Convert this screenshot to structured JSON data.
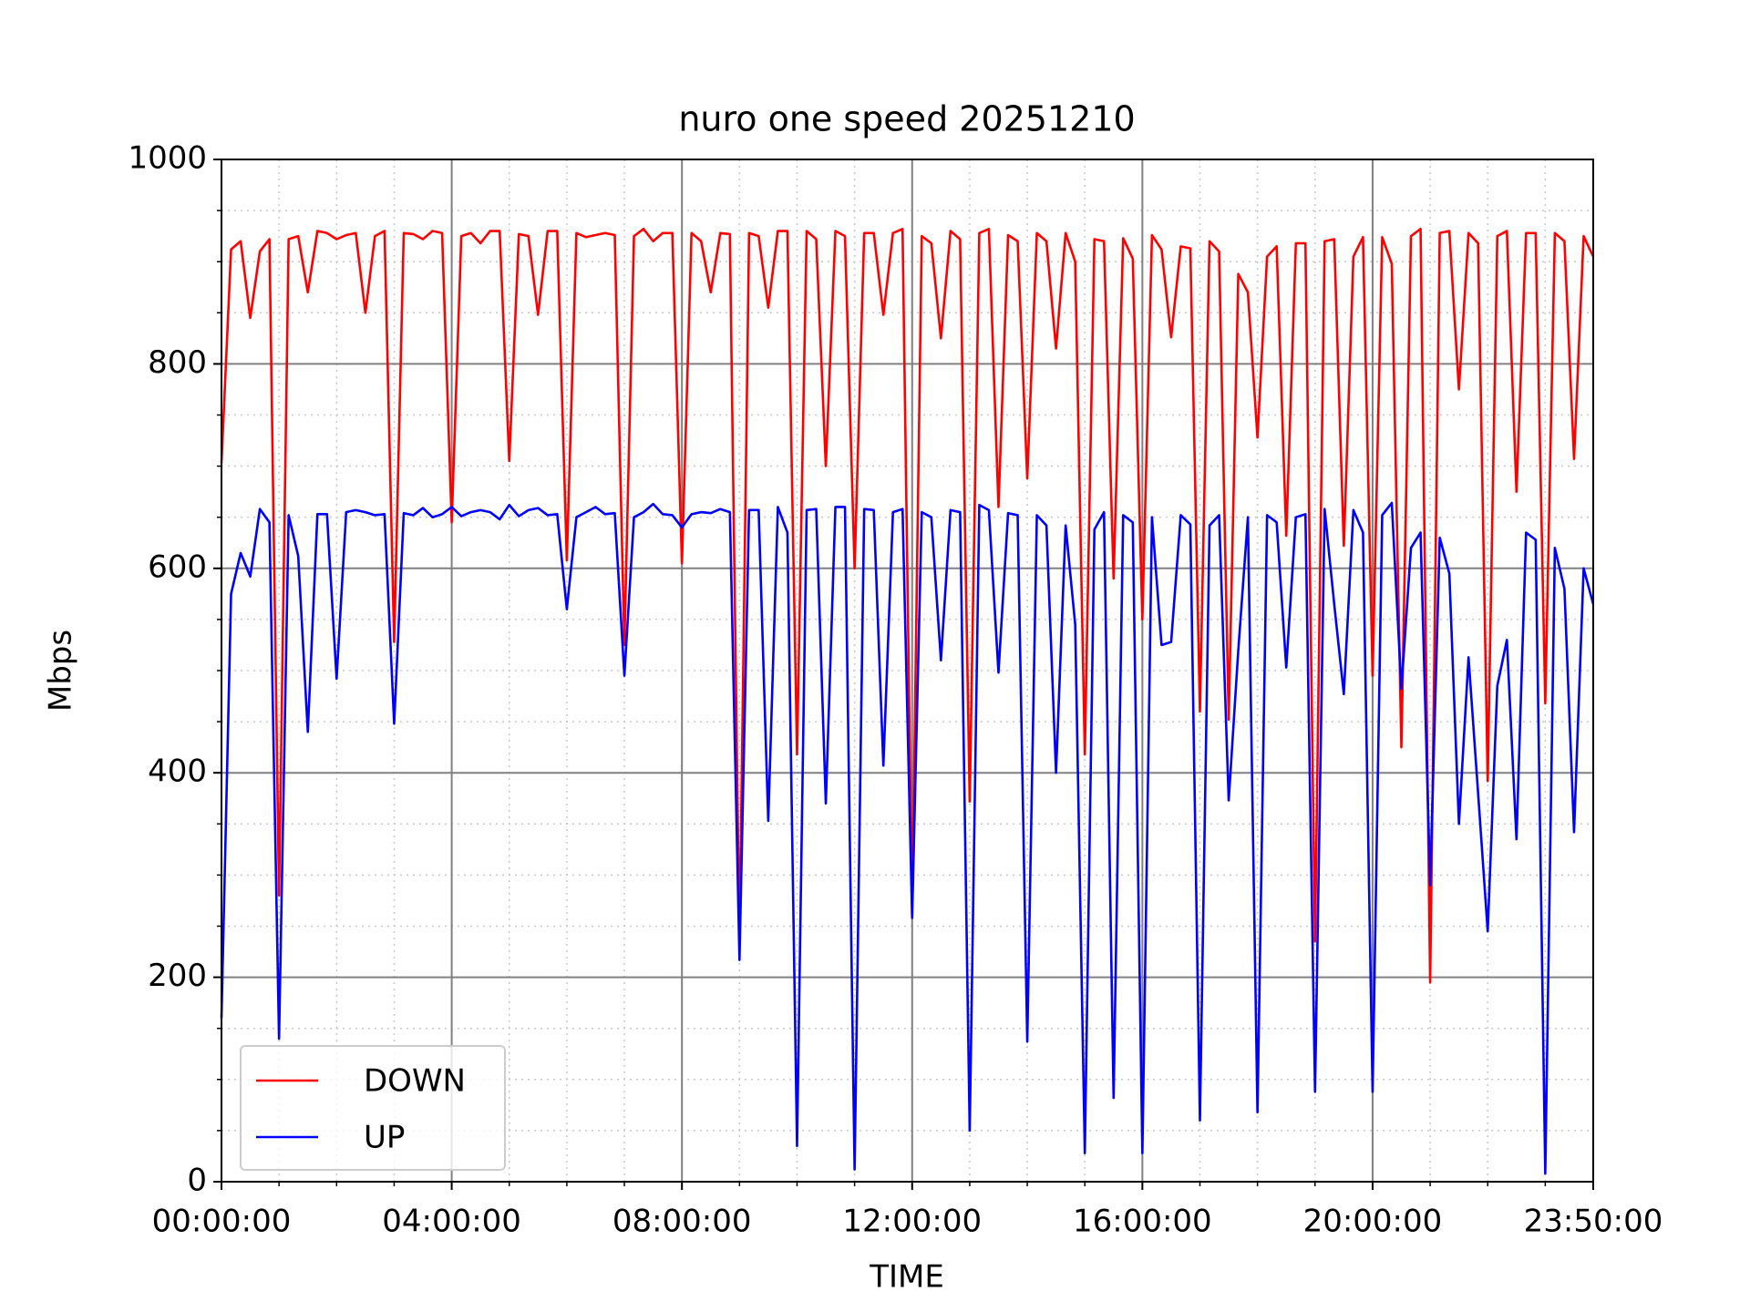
{
  "chart_data": {
    "type": "line",
    "title": "nuro one speed 20251210",
    "x_label": "TIME",
    "y_label": "Mbps",
    "x": [
      "00:00:00",
      "00:10:00",
      "00:20:00",
      "00:30:00",
      "00:40:00",
      "00:50:00",
      "01:00:00",
      "01:10:00",
      "01:20:00",
      "01:30:00",
      "01:40:00",
      "01:50:00",
      "02:00:00",
      "02:10:00",
      "02:20:00",
      "02:30:00",
      "02:40:00",
      "02:50:00",
      "03:00:00",
      "03:10:00",
      "03:20:00",
      "03:30:00",
      "03:40:00",
      "03:50:00",
      "04:00:00",
      "04:10:00",
      "04:20:00",
      "04:30:00",
      "04:40:00",
      "04:50:00",
      "05:00:00",
      "05:10:00",
      "05:20:00",
      "05:30:00",
      "05:40:00",
      "05:50:00",
      "06:00:00",
      "06:10:00",
      "06:20:00",
      "06:30:00",
      "06:40:00",
      "06:50:00",
      "07:00:00",
      "07:10:00",
      "07:20:00",
      "07:30:00",
      "07:40:00",
      "07:50:00",
      "08:00:00",
      "08:10:00",
      "08:20:00",
      "08:30:00",
      "08:40:00",
      "08:50:00",
      "09:00:00",
      "09:10:00",
      "09:20:00",
      "09:30:00",
      "09:40:00",
      "09:50:00",
      "10:00:00",
      "10:10:00",
      "10:20:00",
      "10:30:00",
      "10:40:00",
      "10:50:00",
      "11:00:00",
      "11:10:00",
      "11:20:00",
      "11:30:00",
      "11:40:00",
      "11:50:00",
      "12:00:00",
      "12:10:00",
      "12:20:00",
      "12:30:00",
      "12:40:00",
      "12:50:00",
      "13:00:00",
      "13:10:00",
      "13:20:00",
      "13:30:00",
      "13:40:00",
      "13:50:00",
      "14:00:00",
      "14:10:00",
      "14:20:00",
      "14:30:00",
      "14:40:00",
      "14:50:00",
      "15:00:00",
      "15:10:00",
      "15:20:00",
      "15:30:00",
      "15:40:00",
      "15:50:00",
      "16:00:00",
      "16:10:00",
      "16:20:00",
      "16:30:00",
      "16:40:00",
      "16:50:00",
      "17:00:00",
      "17:10:00",
      "17:20:00",
      "17:30:00",
      "17:40:00",
      "17:50:00",
      "18:00:00",
      "18:10:00",
      "18:20:00",
      "18:30:00",
      "18:40:00",
      "18:50:00",
      "19:00:00",
      "19:10:00",
      "19:20:00",
      "19:30:00",
      "19:40:00",
      "19:50:00",
      "20:00:00",
      "20:10:00",
      "20:20:00",
      "20:30:00",
      "20:40:00",
      "20:50:00",
      "21:00:00",
      "21:10:00",
      "21:20:00",
      "21:30:00",
      "21:40:00",
      "21:50:00",
      "22:00:00",
      "22:10:00",
      "22:20:00",
      "22:30:00",
      "22:40:00",
      "22:50:00",
      "23:00:00",
      "23:10:00",
      "23:20:00",
      "23:30:00",
      "23:40:00",
      "23:50:00"
    ],
    "series": [
      {
        "name": "DOWN",
        "color": "#ff0000",
        "values": [
          703,
          912,
          920,
          845,
          910,
          922,
          280,
          922,
          925,
          870,
          930,
          928,
          922,
          926,
          928,
          850,
          925,
          930,
          528,
          928,
          927,
          922,
          930,
          928,
          645,
          925,
          928,
          918,
          930,
          930,
          705,
          927,
          925,
          848,
          930,
          930,
          608,
          928,
          924,
          926,
          928,
          926,
          525,
          925,
          932,
          920,
          928,
          928,
          605,
          928,
          920,
          870,
          928,
          927,
          230,
          928,
          925,
          855,
          930,
          930,
          418,
          930,
          922,
          700,
          930,
          925,
          600,
          928,
          928,
          848,
          928,
          932,
          262,
          925,
          918,
          825,
          930,
          922,
          372,
          928,
          932,
          660,
          926,
          920,
          688,
          928,
          920,
          815,
          928,
          900,
          418,
          922,
          920,
          590,
          923,
          903,
          550,
          926,
          912,
          826,
          915,
          913,
          460,
          920,
          910,
          452,
          888,
          870,
          728,
          905,
          915,
          632,
          918,
          918,
          235,
          920,
          922,
          622,
          905,
          924,
          495,
          924,
          898,
          425,
          925,
          932,
          195,
          928,
          930,
          775,
          928,
          918,
          392,
          925,
          930,
          675,
          928,
          928,
          468,
          928,
          920,
          707,
          925,
          905
        ]
      },
      {
        "name": "UP",
        "color": "#0000ff",
        "values": [
          160,
          575,
          615,
          592,
          658,
          645,
          140,
          652,
          612,
          440,
          653,
          653,
          492,
          655,
          657,
          655,
          652,
          653,
          448,
          654,
          652,
          659,
          650,
          653,
          660,
          651,
          655,
          657,
          655,
          648,
          662,
          651,
          657,
          659,
          652,
          653,
          560,
          650,
          655,
          660,
          653,
          654,
          495,
          650,
          655,
          663,
          653,
          652,
          640,
          653,
          655,
          654,
          658,
          655,
          217,
          657,
          657,
          353,
          660,
          635,
          35,
          657,
          658,
          370,
          660,
          660,
          12,
          658,
          657,
          407,
          655,
          658,
          258,
          655,
          650,
          510,
          657,
          655,
          50,
          662,
          657,
          498,
          654,
          652,
          137,
          652,
          642,
          400,
          642,
          545,
          28,
          638,
          655,
          82,
          652,
          645,
          28,
          650,
          525,
          528,
          652,
          643,
          60,
          642,
          652,
          373,
          520,
          650,
          68,
          652,
          645,
          503,
          650,
          653,
          88,
          658,
          565,
          477,
          657,
          635,
          88,
          652,
          664,
          482,
          620,
          635,
          290,
          630,
          595,
          350,
          513,
          380,
          245,
          485,
          530,
          335,
          635,
          628,
          8,
          620,
          580,
          342,
          600,
          565
        ]
      }
    ],
    "xticks": [
      "00:00:00",
      "04:00:00",
      "08:00:00",
      "12:00:00",
      "16:00:00",
      "20:00:00",
      "23:50:00"
    ],
    "ylim": [
      0,
      1000
    ],
    "yticks": [
      0,
      200,
      400,
      600,
      800,
      1000
    ],
    "grid": true,
    "minor_grid": true,
    "legend": "lower left"
  }
}
